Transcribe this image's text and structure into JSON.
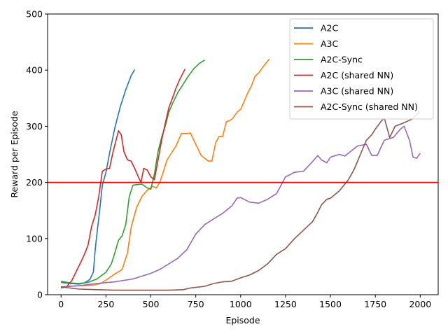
{
  "chart_data": {
    "type": "line",
    "title": "",
    "xlabel": "Episode",
    "ylabel": "Reward per Episode",
    "xlim": [
      -75,
      2100
    ],
    "ylim": [
      0,
      500
    ],
    "xticks": [
      0,
      250,
      500,
      750,
      1000,
      1250,
      1500,
      1750,
      2000
    ],
    "yticks": [
      0,
      100,
      200,
      300,
      400,
      500
    ],
    "grid": false,
    "legend_position": "top-right",
    "hline": {
      "y": 200,
      "color": "#ff0000"
    },
    "series": [
      {
        "name": "A2C",
        "color": "#1f77b4",
        "points": [
          [
            0,
            22
          ],
          [
            50,
            20
          ],
          [
            100,
            19
          ],
          [
            130,
            21
          ],
          [
            160,
            27
          ],
          [
            180,
            40
          ],
          [
            190,
            80
          ],
          [
            200,
            110
          ],
          [
            215,
            150
          ],
          [
            230,
            195
          ],
          [
            250,
            218
          ],
          [
            270,
            252
          ],
          [
            300,
            298
          ],
          [
            330,
            335
          ],
          [
            360,
            365
          ],
          [
            390,
            390
          ],
          [
            410,
            401
          ]
        ]
      },
      {
        "name": "A3C",
        "color": "#ff7f0e",
        "points": [
          [
            0,
            14
          ],
          [
            50,
            15
          ],
          [
            100,
            16
          ],
          [
            180,
            17
          ],
          [
            220,
            20
          ],
          [
            260,
            28
          ],
          [
            300,
            37
          ],
          [
            340,
            45
          ],
          [
            370,
            75
          ],
          [
            390,
            120
          ],
          [
            420,
            155
          ],
          [
            450,
            175
          ],
          [
            480,
            186
          ],
          [
            510,
            193
          ],
          [
            530,
            190
          ],
          [
            550,
            200
          ],
          [
            570,
            220
          ],
          [
            590,
            240
          ],
          [
            610,
            250
          ],
          [
            640,
            265
          ],
          [
            670,
            287
          ],
          [
            700,
            287
          ],
          [
            720,
            288
          ],
          [
            750,
            268
          ],
          [
            780,
            248
          ],
          [
            820,
            238
          ],
          [
            840,
            238
          ],
          [
            860,
            270
          ],
          [
            880,
            282
          ],
          [
            900,
            282
          ],
          [
            920,
            308
          ],
          [
            950,
            312
          ],
          [
            980,
            325
          ],
          [
            1000,
            330
          ],
          [
            1040,
            360
          ],
          [
            1060,
            372
          ],
          [
            1080,
            389
          ],
          [
            1100,
            395
          ],
          [
            1130,
            408
          ],
          [
            1160,
            420
          ]
        ]
      },
      {
        "name": "A2C-Sync",
        "color": "#2ca02c",
        "points": [
          [
            0,
            24
          ],
          [
            50,
            21
          ],
          [
            100,
            20
          ],
          [
            150,
            22
          ],
          [
            200,
            28
          ],
          [
            250,
            40
          ],
          [
            280,
            55
          ],
          [
            300,
            75
          ],
          [
            320,
            97
          ],
          [
            340,
            105
          ],
          [
            360,
            125
          ],
          [
            380,
            175
          ],
          [
            400,
            195
          ],
          [
            420,
            196
          ],
          [
            450,
            197
          ],
          [
            480,
            190
          ],
          [
            500,
            188
          ],
          [
            520,
            215
          ],
          [
            540,
            255
          ],
          [
            560,
            280
          ],
          [
            580,
            300
          ],
          [
            600,
            325
          ],
          [
            620,
            340
          ],
          [
            650,
            360
          ],
          [
            680,
            375
          ],
          [
            710,
            390
          ],
          [
            740,
            403
          ],
          [
            770,
            412
          ],
          [
            800,
            418
          ]
        ]
      },
      {
        "name": "A2C (shared NN)",
        "color": "#d62728",
        "points": [
          [
            0,
            12
          ],
          [
            30,
            14
          ],
          [
            60,
            25
          ],
          [
            90,
            45
          ],
          [
            110,
            58
          ],
          [
            130,
            72
          ],
          [
            150,
            88
          ],
          [
            170,
            122
          ],
          [
            190,
            142
          ],
          [
            210,
            175
          ],
          [
            230,
            220
          ],
          [
            250,
            224
          ],
          [
            270,
            225
          ],
          [
            290,
            255
          ],
          [
            310,
            280
          ],
          [
            320,
            292
          ],
          [
            335,
            285
          ],
          [
            350,
            255
          ],
          [
            370,
            240
          ],
          [
            390,
            238
          ],
          [
            410,
            225
          ],
          [
            430,
            210
          ],
          [
            445,
            200
          ],
          [
            460,
            225
          ],
          [
            480,
            222
          ],
          [
            500,
            210
          ],
          [
            520,
            205
          ],
          [
            540,
            240
          ],
          [
            560,
            275
          ],
          [
            580,
            305
          ],
          [
            600,
            333
          ],
          [
            620,
            350
          ],
          [
            640,
            368
          ],
          [
            660,
            383
          ],
          [
            690,
            402
          ]
        ]
      },
      {
        "name": "A3C (shared NN)",
        "color": "#9467bd",
        "points": [
          [
            0,
            14
          ],
          [
            100,
            16
          ],
          [
            200,
            20
          ],
          [
            300,
            23
          ],
          [
            400,
            28
          ],
          [
            500,
            38
          ],
          [
            550,
            45
          ],
          [
            600,
            55
          ],
          [
            650,
            65
          ],
          [
            700,
            80
          ],
          [
            750,
            108
          ],
          [
            800,
            125
          ],
          [
            850,
            135
          ],
          [
            900,
            145
          ],
          [
            950,
            158
          ],
          [
            980,
            172
          ],
          [
            1000,
            173
          ],
          [
            1050,
            165
          ],
          [
            1100,
            163
          ],
          [
            1150,
            170
          ],
          [
            1200,
            180
          ],
          [
            1250,
            210
          ],
          [
            1300,
            218
          ],
          [
            1350,
            220
          ],
          [
            1400,
            237
          ],
          [
            1430,
            248
          ],
          [
            1450,
            240
          ],
          [
            1480,
            235
          ],
          [
            1500,
            245
          ],
          [
            1550,
            250
          ],
          [
            1580,
            247
          ],
          [
            1600,
            252
          ],
          [
            1650,
            265
          ],
          [
            1700,
            268
          ],
          [
            1730,
            248
          ],
          [
            1760,
            248
          ],
          [
            1800,
            275
          ],
          [
            1850,
            280
          ],
          [
            1890,
            295
          ],
          [
            1910,
            300
          ],
          [
            1940,
            275
          ],
          [
            1960,
            245
          ],
          [
            1980,
            243
          ],
          [
            2000,
            252
          ]
        ]
      },
      {
        "name": "A2C-Sync (shared NN)",
        "color": "#8c564b",
        "points": [
          [
            0,
            14
          ],
          [
            100,
            10
          ],
          [
            200,
            9
          ],
          [
            300,
            8
          ],
          [
            400,
            8
          ],
          [
            500,
            8
          ],
          [
            600,
            8
          ],
          [
            680,
            9
          ],
          [
            720,
            12
          ],
          [
            800,
            15
          ],
          [
            850,
            20
          ],
          [
            900,
            23
          ],
          [
            950,
            24
          ],
          [
            1000,
            30
          ],
          [
            1050,
            35
          ],
          [
            1100,
            43
          ],
          [
            1150,
            55
          ],
          [
            1200,
            72
          ],
          [
            1250,
            82
          ],
          [
            1300,
            100
          ],
          [
            1350,
            115
          ],
          [
            1400,
            130
          ],
          [
            1430,
            147
          ],
          [
            1450,
            160
          ],
          [
            1480,
            170
          ],
          [
            1500,
            172
          ],
          [
            1550,
            185
          ],
          [
            1600,
            205
          ],
          [
            1630,
            222
          ],
          [
            1650,
            237
          ],
          [
            1680,
            260
          ],
          [
            1700,
            275
          ],
          [
            1730,
            285
          ],
          [
            1750,
            295
          ],
          [
            1780,
            308
          ],
          [
            1800,
            315
          ],
          [
            1830,
            280
          ],
          [
            1860,
            300
          ],
          [
            1900,
            305
          ],
          [
            1950,
            312
          ],
          [
            2000,
            326
          ]
        ]
      }
    ]
  }
}
